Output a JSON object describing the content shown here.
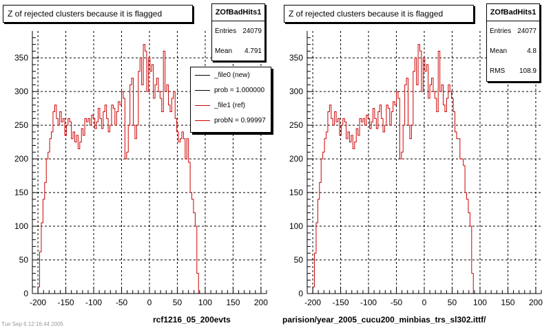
{
  "chart_data": [
    {
      "type": "line",
      "title": "Z of rejected clusters  because it is flagged",
      "xlim": [
        -210,
        210
      ],
      "ylim": [
        0,
        390
      ],
      "xticks": [
        -200,
        -150,
        -100,
        -50,
        0,
        50,
        100,
        150,
        200
      ],
      "yticks": [
        0,
        50,
        100,
        150,
        200,
        250,
        300,
        350
      ],
      "grid": true,
      "stats": {
        "name": "ZOfBadHits1",
        "rows": [
          {
            "label": "Entries",
            "value": "24079"
          },
          {
            "label": "Mean",
            "value": "4.791"
          }
        ]
      },
      "legend": [
        {
          "label": "_file0 (new)",
          "color": "#000000"
        },
        {
          "label": "prob = 1.000000",
          "color": "#000000"
        },
        {
          "label": "_file1 (ref)",
          "color": "#cc0000"
        },
        {
          "label": "probN = 0.99997",
          "color": "#cc0000"
        }
      ],
      "caption": "rcf1216_05_200evts",
      "x_start": -200,
      "bin_width": 3,
      "series": [
        {
          "color": "#cc0000",
          "values": [
            10,
            62,
            105,
            140,
            165,
            200,
            210,
            230,
            240,
            270,
            280,
            260,
            250,
            270,
            255,
            260,
            235,
            250,
            260,
            255,
            230,
            240,
            225,
            235,
            215,
            225,
            245,
            235,
            260,
            255,
            260,
            250,
            265,
            260,
            245,
            255,
            275,
            260,
            245,
            270,
            280,
            260,
            240,
            250,
            280,
            275,
            250,
            270,
            285,
            280,
            300,
            290,
            200,
            210,
            250,
            310,
            320,
            250,
            230,
            250,
            330,
            350,
            310,
            370,
            360,
            300,
            350,
            330,
            340,
            290,
            310,
            320,
            300,
            290,
            270,
            360,
            300,
            310,
            280,
            270,
            290,
            300,
            260,
            240,
            225,
            230,
            240,
            230,
            200,
            230,
            195,
            150,
            140,
            120,
            100,
            30
          ]
        }
      ]
    },
    {
      "type": "line",
      "title": "Z of rejected clusters  because it is flagged",
      "xlim": [
        -210,
        210
      ],
      "ylim": [
        0,
        390
      ],
      "xticks": [
        -200,
        -150,
        -100,
        -50,
        0,
        50,
        100,
        150,
        200
      ],
      "yticks": [
        0,
        50,
        100,
        150,
        200,
        250,
        300,
        350
      ],
      "grid": true,
      "stats": {
        "name": "ZOfBadHits1",
        "rows": [
          {
            "label": "Entries",
            "value": "24077"
          },
          {
            "label": "Mean",
            "value": "4.8"
          },
          {
            "label": "RMS",
            "value": "108.9"
          }
        ]
      },
      "caption": "parision/year_2005_cucu200_minbias_trs_sl302.ittf/",
      "x_start": -200,
      "bin_width": 3,
      "series": [
        {
          "color": "#cc0000",
          "values": [
            10,
            60,
            105,
            140,
            165,
            200,
            210,
            230,
            240,
            270,
            280,
            260,
            250,
            270,
            255,
            260,
            235,
            250,
            260,
            255,
            230,
            240,
            225,
            235,
            215,
            225,
            245,
            235,
            260,
            255,
            260,
            250,
            265,
            260,
            245,
            255,
            275,
            260,
            245,
            270,
            280,
            260,
            240,
            250,
            280,
            275,
            250,
            270,
            285,
            280,
            300,
            290,
            200,
            210,
            250,
            310,
            320,
            250,
            230,
            250,
            330,
            350,
            310,
            370,
            360,
            300,
            350,
            330,
            340,
            290,
            310,
            320,
            300,
            290,
            270,
            360,
            300,
            310,
            280,
            270,
            290,
            310,
            300,
            290,
            270,
            240,
            230,
            230,
            200,
            200,
            190,
            150,
            140,
            120,
            100,
            30
          ]
        }
      ]
    }
  ],
  "footer": {
    "text": "Tue Sep 6 12:16:44 2005"
  }
}
